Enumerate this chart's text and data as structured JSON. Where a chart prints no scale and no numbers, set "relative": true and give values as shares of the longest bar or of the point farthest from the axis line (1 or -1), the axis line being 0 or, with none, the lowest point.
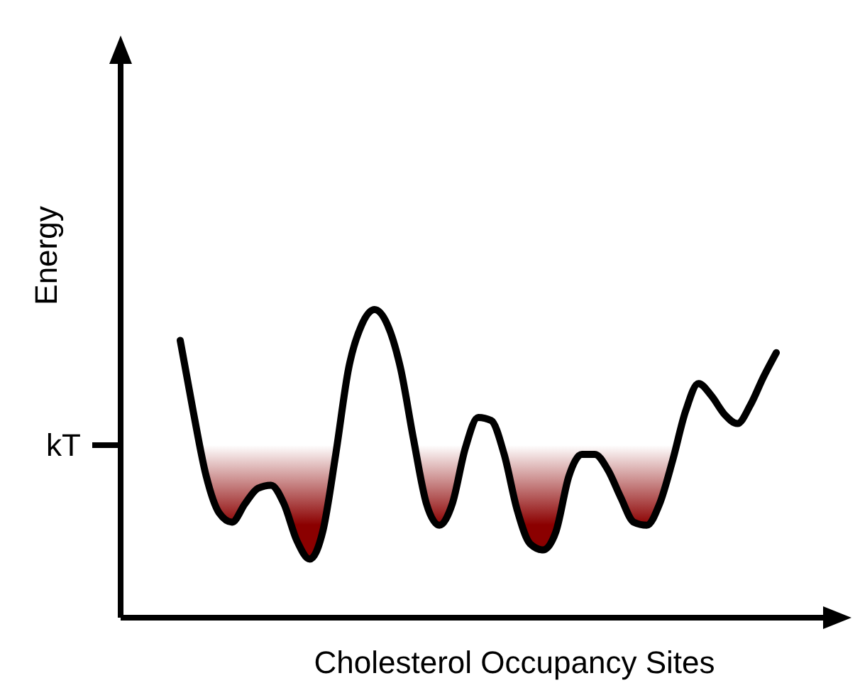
{
  "chart_data": {
    "type": "line",
    "relative": true,
    "xlabel": "Cholesterol Occupancy Sites",
    "ylabel": "Energy",
    "categories": [
      null,
      null,
      null,
      null,
      null,
      null,
      null,
      null,
      null,
      null,
      null,
      null,
      null,
      null,
      null,
      null,
      null,
      null,
      null,
      null,
      null,
      null,
      null,
      null,
      null,
      null,
      null,
      null,
      null,
      null,
      null,
      null,
      null,
      null,
      null,
      null,
      null,
      null,
      null,
      null,
      null,
      null,
      null,
      null,
      null,
      null,
      null
    ],
    "series": [
      {
        "color": "#000000",
        "values": [
          0.9,
          0.67,
          0.46,
          0.34,
          0.31,
          0.37,
          0.42,
          0.43,
          0.37,
          0.25,
          0.19,
          0.28,
          0.53,
          0.81,
          0.95,
          1,
          0.95,
          0.81,
          0.58,
          0.37,
          0.3,
          0.37,
          0.55,
          0.65,
          0.64,
          0.53,
          0.35,
          0.24,
          0.22,
          0.28,
          0.46,
          0.53,
          0.53,
          0.48,
          0.39,
          0.31,
          0.3,
          0.37,
          0.51,
          0.67,
          0.76,
          0.72,
          0.66,
          0.63,
          0.69,
          0.78,
          0.86
        ]
      }
    ],
    "ref_lines": [
      {
        "axis": "y",
        "value": 0.56,
        "label": "kT"
      }
    ],
    "marker": "none",
    "line_style": "solid"
  }
}
